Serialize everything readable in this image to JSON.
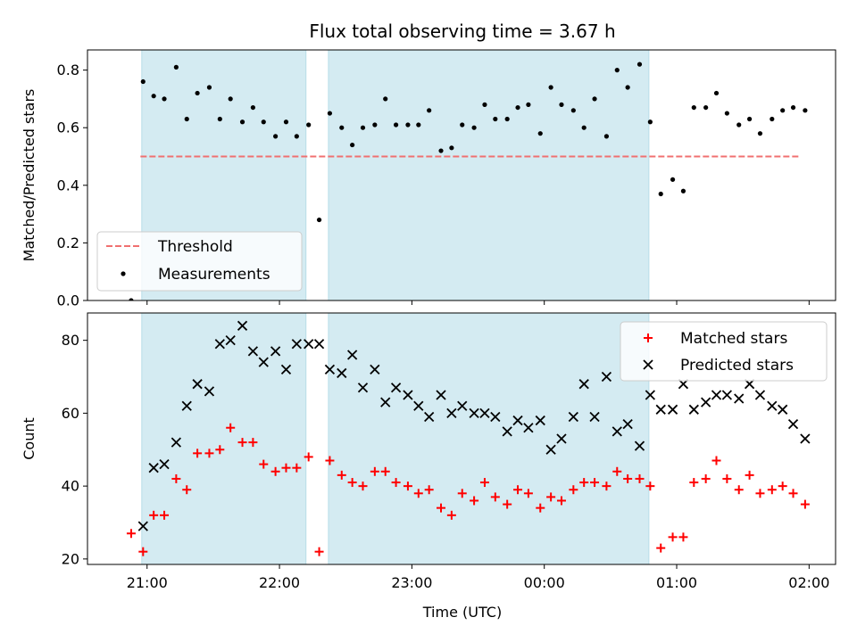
{
  "chart_data": {
    "title": "Flux total observing time = 3.67 h",
    "xlabel": "Time (UTC)",
    "x_ticks": [
      "21:00",
      "22:00",
      "23:00",
      "00:00",
      "01:00",
      "02:00"
    ],
    "x_range_hours": [
      20.55,
      26.2
    ],
    "shaded_intervals": [
      [
        20.96,
        22.2
      ],
      [
        22.37,
        24.79
      ]
    ],
    "shade_color": "#d4ebf2",
    "panels": [
      {
        "type": "scatter",
        "ylabel": "Matched/Predicted stars",
        "ylim": [
          0,
          0.87
        ],
        "yticks": [
          "0.0",
          "0.2",
          "0.4",
          "0.6",
          "0.8"
        ],
        "threshold": {
          "label": "Threshold",
          "value": 0.5,
          "color": "#f07070",
          "x_span": [
            20.95,
            25.92
          ]
        },
        "legend": {
          "position": "lower-left",
          "entries": [
            "Threshold",
            "Measurements"
          ]
        },
        "series": [
          {
            "name": "Measurements",
            "marker": "dot",
            "color": "#000000",
            "x": [
              20.88,
              20.97,
              21.05,
              21.13,
              21.22,
              21.3,
              21.38,
              21.47,
              21.55,
              21.63,
              21.72,
              21.8,
              21.88,
              21.97,
              22.05,
              22.13,
              22.22,
              22.3,
              22.38,
              22.47,
              22.55,
              22.63,
              22.72,
              22.8,
              22.88,
              22.97,
              23.05,
              23.13,
              23.22,
              23.3,
              23.38,
              23.47,
              23.55,
              23.63,
              23.72,
              23.8,
              23.88,
              23.97,
              24.05,
              24.13,
              24.22,
              24.3,
              24.38,
              24.47,
              24.55,
              24.63,
              24.72,
              24.8,
              24.88,
              24.97,
              25.05,
              25.13,
              25.22,
              25.3,
              25.38,
              25.47,
              25.55,
              25.63,
              25.72,
              25.8,
              25.88,
              25.97
            ],
            "y": [
              0.0,
              0.76,
              0.71,
              0.7,
              0.81,
              0.63,
              0.72,
              0.74,
              0.63,
              0.7,
              0.62,
              0.67,
              0.62,
              0.57,
              0.62,
              0.57,
              0.61,
              0.28,
              0.65,
              0.6,
              0.54,
              0.6,
              0.61,
              0.7,
              0.61,
              0.61,
              0.61,
              0.66,
              0.52,
              0.53,
              0.61,
              0.6,
              0.68,
              0.63,
              0.63,
              0.67,
              0.68,
              0.58,
              0.74,
              0.68,
              0.66,
              0.6,
              0.7,
              0.57,
              0.8,
              0.74,
              0.82,
              0.62,
              0.37,
              0.42,
              0.38,
              0.67,
              0.67,
              0.72,
              0.65,
              0.61,
              0.63,
              0.58,
              0.63,
              0.66,
              0.67,
              0.66
            ]
          }
        ]
      },
      {
        "type": "scatter",
        "ylabel": "Count",
        "ylim": [
          18.5,
          87.5
        ],
        "yticks": [
          "20",
          "40",
          "60",
          "80"
        ],
        "legend": {
          "position": "upper-right",
          "entries": [
            "Matched stars",
            "Predicted stars"
          ]
        },
        "series": [
          {
            "name": "Matched stars",
            "marker": "plus",
            "color": "#ff0000",
            "x": [
              20.88,
              20.97,
              21.05,
              21.13,
              21.22,
              21.3,
              21.38,
              21.47,
              21.55,
              21.63,
              21.72,
              21.8,
              21.88,
              21.97,
              22.05,
              22.13,
              22.22,
              22.3,
              22.38,
              22.47,
              22.55,
              22.63,
              22.72,
              22.8,
              22.88,
              22.97,
              23.05,
              23.13,
              23.22,
              23.3,
              23.38,
              23.47,
              23.55,
              23.63,
              23.72,
              23.8,
              23.88,
              23.97,
              24.05,
              24.13,
              24.22,
              24.3,
              24.38,
              24.47,
              24.55,
              24.63,
              24.72,
              24.8,
              24.88,
              24.97,
              25.05,
              25.13,
              25.22,
              25.3,
              25.38,
              25.47,
              25.55,
              25.63,
              25.72,
              25.8,
              25.88,
              25.97
            ],
            "y": [
              27,
              22,
              32,
              32,
              42,
              39,
              49,
              49,
              50,
              56,
              52,
              52,
              46,
              44,
              45,
              45,
              48,
              22,
              47,
              43,
              41,
              40,
              44,
              44,
              41,
              40,
              38,
              39,
              34,
              32,
              38,
              36,
              41,
              37,
              35,
              39,
              38,
              34,
              37,
              36,
              39,
              41,
              41,
              40,
              44,
              42,
              42,
              40,
              23,
              26,
              26,
              41,
              42,
              47,
              42,
              39,
              43,
              38,
              39,
              40,
              38,
              35
            ]
          },
          {
            "name": "Predicted stars",
            "marker": "x",
            "color": "#000000",
            "x": [
              20.97,
              21.05,
              21.13,
              21.22,
              21.3,
              21.38,
              21.47,
              21.55,
              21.63,
              21.72,
              21.8,
              21.88,
              21.97,
              22.05,
              22.13,
              22.22,
              22.3,
              22.38,
              22.47,
              22.55,
              22.63,
              22.72,
              22.8,
              22.88,
              22.97,
              23.05,
              23.13,
              23.22,
              23.3,
              23.38,
              23.47,
              23.55,
              23.63,
              23.72,
              23.8,
              23.88,
              23.97,
              24.05,
              24.13,
              24.22,
              24.3,
              24.38,
              24.47,
              24.55,
              24.63,
              24.72,
              24.8,
              24.88,
              24.97,
              25.05,
              25.13,
              25.22,
              25.3,
              25.38,
              25.47,
              25.55,
              25.63,
              25.72,
              25.8,
              25.88,
              25.97
            ],
            "y": [
              29,
              45,
              46,
              52,
              62,
              68,
              66,
              79,
              80,
              84,
              77,
              74,
              77,
              72,
              79,
              79,
              79,
              72,
              71,
              76,
              67,
              72,
              63,
              67,
              65,
              62,
              59,
              65,
              60,
              62,
              60,
              60,
              59,
              55,
              58,
              56,
              58,
              50,
              53,
              59,
              68,
              59,
              70,
              55,
              57,
              51,
              65,
              61,
              61,
              68,
              61,
              63,
              65,
              65,
              64,
              68,
              65,
              62,
              61,
              57,
              53
            ]
          }
        ]
      }
    ]
  }
}
